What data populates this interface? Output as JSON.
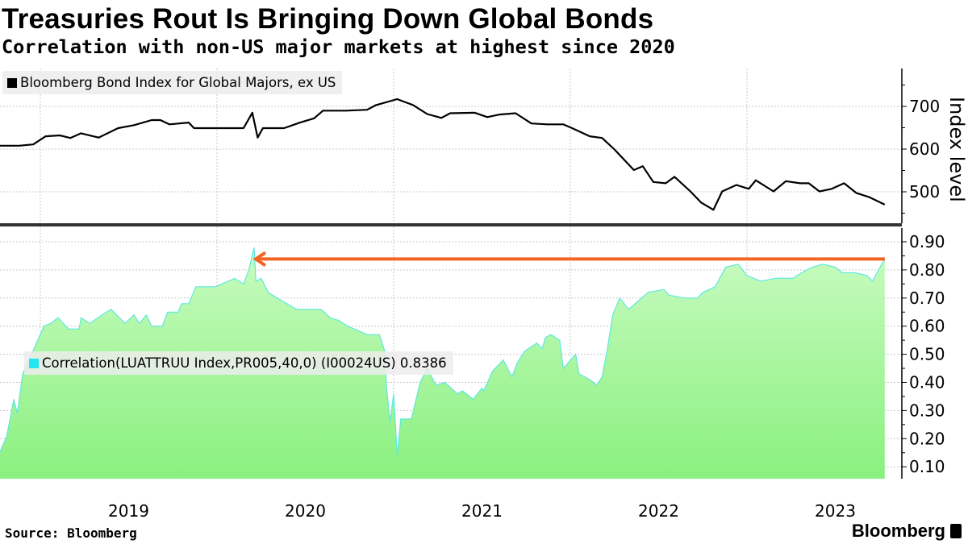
{
  "header": {
    "title": "Treasuries Rout Is Bringing Down Global Bonds",
    "subtitle": "Correlation with non-US major markets at highest since 2020"
  },
  "footer": {
    "source": "Source: Bloomberg",
    "logo": "Bloomberg"
  },
  "chart_data": [
    {
      "type": "line",
      "panel": "top",
      "legend": "Bloomberg Bond Index for Global Majors, ex US",
      "legend_placement": "top-left",
      "ylabel": "Index level",
      "yticks": [
        500,
        600,
        700
      ],
      "ytick_labels": [
        "500",
        "600",
        "700"
      ],
      "ylim": [
        425,
        790
      ],
      "xlim": [
        2018.77,
        2023.78
      ],
      "color": "#000000",
      "series": [
        {
          "name": "Bloomberg Bond Index for Global Majors, ex US",
          "points": [
            [
              2018.77,
              608
            ],
            [
              2018.88,
              608
            ],
            [
              2018.96,
              611
            ],
            [
              2019.03,
              630
            ],
            [
              2019.11,
              632
            ],
            [
              2019.17,
              626
            ],
            [
              2019.23,
              637
            ],
            [
              2019.33,
              627
            ],
            [
              2019.44,
              649
            ],
            [
              2019.53,
              656
            ],
            [
              2019.63,
              668
            ],
            [
              2019.68,
              668
            ],
            [
              2019.73,
              658
            ],
            [
              2019.84,
              662
            ],
            [
              2019.87,
              649
            ],
            [
              2019.99,
              649
            ],
            [
              2020.06,
              649
            ],
            [
              2020.15,
              649
            ],
            [
              2020.2,
              685
            ],
            [
              2020.23,
              627
            ],
            [
              2020.26,
              649
            ],
            [
              2020.33,
              649
            ],
            [
              2020.38,
              649
            ],
            [
              2020.47,
              662
            ],
            [
              2020.55,
              672
            ],
            [
              2020.6,
              690
            ],
            [
              2020.73,
              690
            ],
            [
              2020.85,
              692
            ],
            [
              2020.9,
              703
            ],
            [
              2021.02,
              717
            ],
            [
              2021.11,
              703
            ],
            [
              2021.19,
              682
            ],
            [
              2021.27,
              673
            ],
            [
              2021.32,
              684
            ],
            [
              2021.46,
              685
            ],
            [
              2021.53,
              675
            ],
            [
              2021.6,
              681
            ],
            [
              2021.69,
              684
            ],
            [
              2021.78,
              660
            ],
            [
              2021.87,
              658
            ],
            [
              2021.96,
              658
            ],
            [
              2022.01,
              649
            ],
            [
              2022.11,
              630
            ],
            [
              2022.18,
              626
            ],
            [
              2022.25,
              599
            ],
            [
              2022.36,
              551
            ],
            [
              2022.41,
              560
            ],
            [
              2022.47,
              523
            ],
            [
              2022.54,
              520
            ],
            [
              2022.59,
              535
            ],
            [
              2022.68,
              501
            ],
            [
              2022.74,
              475
            ],
            [
              2022.81,
              458
            ],
            [
              2022.86,
              501
            ],
            [
              2022.94,
              516
            ],
            [
              2023.01,
              507
            ],
            [
              2023.05,
              527
            ],
            [
              2023.15,
              501
            ],
            [
              2023.22,
              525
            ],
            [
              2023.3,
              520
            ],
            [
              2023.35,
              520
            ],
            [
              2023.41,
              501
            ],
            [
              2023.48,
              507
            ],
            [
              2023.55,
              520
            ],
            [
              2023.62,
              497
            ],
            [
              2023.69,
              488
            ],
            [
              2023.78,
              470
            ]
          ]
        }
      ]
    },
    {
      "type": "area",
      "panel": "bottom",
      "legend": "Correlation(LUATTRUU Index,PR005,40,0) (I00024US) 0.8386",
      "legend_placement": "middle-left",
      "yticks": [
        0.1,
        0.2,
        0.3,
        0.4,
        0.5,
        0.6,
        0.7,
        0.8,
        0.9
      ],
      "ytick_labels": [
        "0.10",
        "0.20",
        "0.30",
        "0.40",
        "0.50",
        "0.60",
        "0.70",
        "0.80",
        "0.90"
      ],
      "ylim": [
        0.057,
        0.95
      ],
      "xlim": [
        2018.77,
        2023.78
      ],
      "line_color": "#5fe8e0",
      "fill_top": "#c8fbc0",
      "fill_bottom": "#8af07f",
      "annotation": {
        "type": "arrow",
        "from": [
          2023.78,
          0.8386
        ],
        "to": [
          2020.21,
          0.8386
        ],
        "color": "#f26522"
      },
      "series": [
        {
          "name": "Correlation",
          "last_value": 0.8386,
          "points": [
            [
              2018.77,
              0.15
            ],
            [
              2018.81,
              0.21
            ],
            [
              2018.85,
              0.34
            ],
            [
              2018.87,
              0.29
            ],
            [
              2018.9,
              0.43
            ],
            [
              2018.95,
              0.5
            ],
            [
              2019.02,
              0.6
            ],
            [
              2019.06,
              0.61
            ],
            [
              2019.1,
              0.63
            ],
            [
              2019.16,
              0.59
            ],
            [
              2019.22,
              0.59
            ],
            [
              2019.23,
              0.63
            ],
            [
              2019.28,
              0.61
            ],
            [
              2019.35,
              0.64
            ],
            [
              2019.4,
              0.66
            ],
            [
              2019.48,
              0.61
            ],
            [
              2019.53,
              0.64
            ],
            [
              2019.56,
              0.61
            ],
            [
              2019.6,
              0.64
            ],
            [
              2019.63,
              0.6
            ],
            [
              2019.69,
              0.6
            ],
            [
              2019.72,
              0.65
            ],
            [
              2019.78,
              0.65
            ],
            [
              2019.8,
              0.68
            ],
            [
              2019.84,
              0.68
            ],
            [
              2019.88,
              0.74
            ],
            [
              2019.99,
              0.74
            ],
            [
              2020.1,
              0.77
            ],
            [
              2020.15,
              0.75
            ],
            [
              2020.18,
              0.8
            ],
            [
              2020.21,
              0.88
            ],
            [
              2020.22,
              0.76
            ],
            [
              2020.25,
              0.77
            ],
            [
              2020.29,
              0.72
            ],
            [
              2020.34,
              0.7
            ],
            [
              2020.45,
              0.66
            ],
            [
              2020.59,
              0.66
            ],
            [
              2020.64,
              0.63
            ],
            [
              2020.69,
              0.62
            ],
            [
              2020.74,
              0.6
            ],
            [
              2020.85,
              0.57
            ],
            [
              2020.92,
              0.57
            ],
            [
              2020.95,
              0.51
            ],
            [
              2020.96,
              0.38
            ],
            [
              2020.98,
              0.26
            ],
            [
              2021.0,
              0.36
            ],
            [
              2021.02,
              0.14
            ],
            [
              2021.04,
              0.27
            ],
            [
              2021.1,
              0.27
            ],
            [
              2021.15,
              0.4
            ],
            [
              2021.19,
              0.45
            ],
            [
              2021.24,
              0.39
            ],
            [
              2021.29,
              0.4
            ],
            [
              2021.36,
              0.36
            ],
            [
              2021.39,
              0.37
            ],
            [
              2021.45,
              0.34
            ],
            [
              2021.5,
              0.38
            ],
            [
              2021.51,
              0.37
            ],
            [
              2021.56,
              0.44
            ],
            [
              2021.62,
              0.48
            ],
            [
              2021.67,
              0.42
            ],
            [
              2021.7,
              0.47
            ],
            [
              2021.74,
              0.51
            ],
            [
              2021.81,
              0.54
            ],
            [
              2021.84,
              0.52
            ],
            [
              2021.86,
              0.56
            ],
            [
              2021.89,
              0.57
            ],
            [
              2021.94,
              0.55
            ],
            [
              2021.96,
              0.45
            ],
            [
              2022.03,
              0.5
            ],
            [
              2022.05,
              0.43
            ],
            [
              2022.11,
              0.41
            ],
            [
              2022.15,
              0.39
            ],
            [
              2022.18,
              0.42
            ],
            [
              2022.21,
              0.52
            ],
            [
              2022.24,
              0.64
            ],
            [
              2022.28,
              0.7
            ],
            [
              2022.33,
              0.66
            ],
            [
              2022.44,
              0.72
            ],
            [
              2022.53,
              0.73
            ],
            [
              2022.56,
              0.71
            ],
            [
              2022.65,
              0.7
            ],
            [
              2022.72,
              0.7
            ],
            [
              2022.75,
              0.72
            ],
            [
              2022.82,
              0.74
            ],
            [
              2022.88,
              0.81
            ],
            [
              2022.95,
              0.82
            ],
            [
              2023.0,
              0.78
            ],
            [
              2023.08,
              0.76
            ],
            [
              2023.16,
              0.77
            ],
            [
              2023.26,
              0.77
            ],
            [
              2023.31,
              0.79
            ],
            [
              2023.37,
              0.81
            ],
            [
              2023.43,
              0.82
            ],
            [
              2023.5,
              0.81
            ],
            [
              2023.54,
              0.79
            ],
            [
              2023.61,
              0.79
            ],
            [
              2023.68,
              0.78
            ],
            [
              2023.71,
              0.76
            ],
            [
              2023.78,
              0.84
            ]
          ]
        }
      ]
    }
  ],
  "xaxis": {
    "ticks": [
      "2019",
      "2020",
      "2021",
      "2022",
      "2023"
    ]
  }
}
